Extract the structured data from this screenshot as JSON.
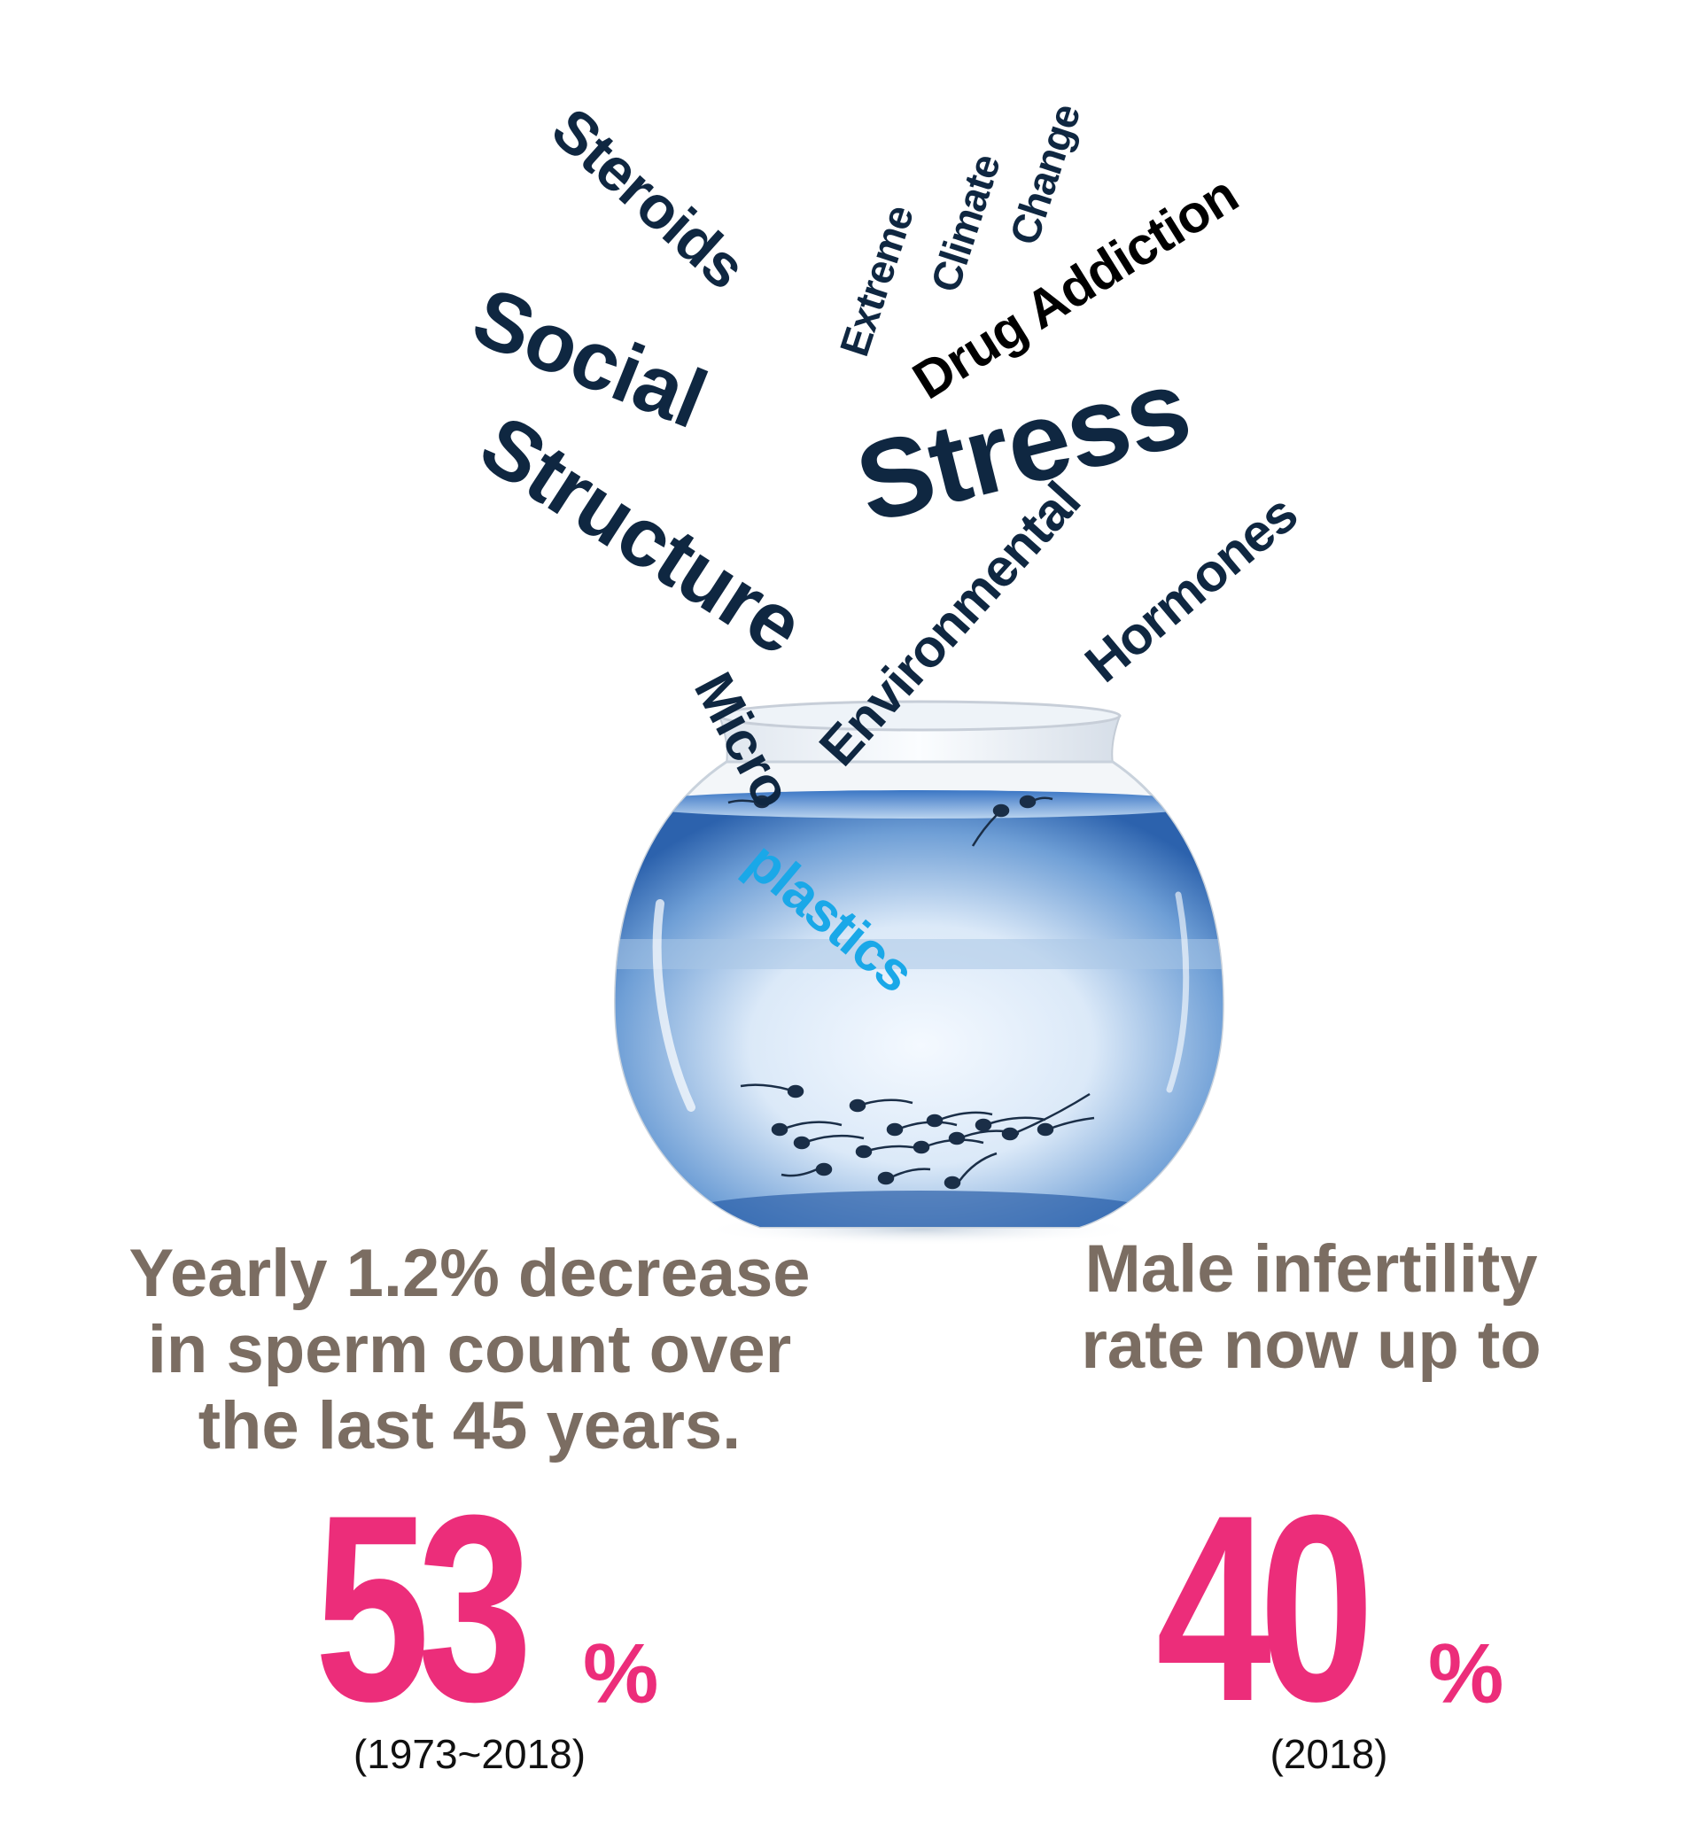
{
  "factors": {
    "steroids": "Steroids",
    "extreme": "Extreme",
    "climate": "Climate",
    "change": "Change",
    "drug_addiction": "Drug Addiction",
    "social": "Social",
    "structure": "Structure",
    "stress": "Stress",
    "environmental": "Environmental",
    "hormones": "Hormones",
    "micro": "Micro",
    "plastics": "plastics"
  },
  "stats": {
    "left": {
      "text_lines": [
        "Yearly 1.2% decrease",
        "in sperm count over",
        "the last 45 years."
      ],
      "value": "53",
      "unit": "%",
      "note": "(1973~2018)"
    },
    "right": {
      "text_lines": [
        "Male infertility",
        "rate now up to"
      ],
      "value": "40",
      "unit": "%",
      "note": "(2018)"
    }
  },
  "colors": {
    "navy_text": "#0f2741",
    "gray_text": "#7b6d62",
    "accent_pink": "#ec2d7a",
    "water_blue": "#2f78c9",
    "plastics_cyan": "#1aa8e8"
  }
}
